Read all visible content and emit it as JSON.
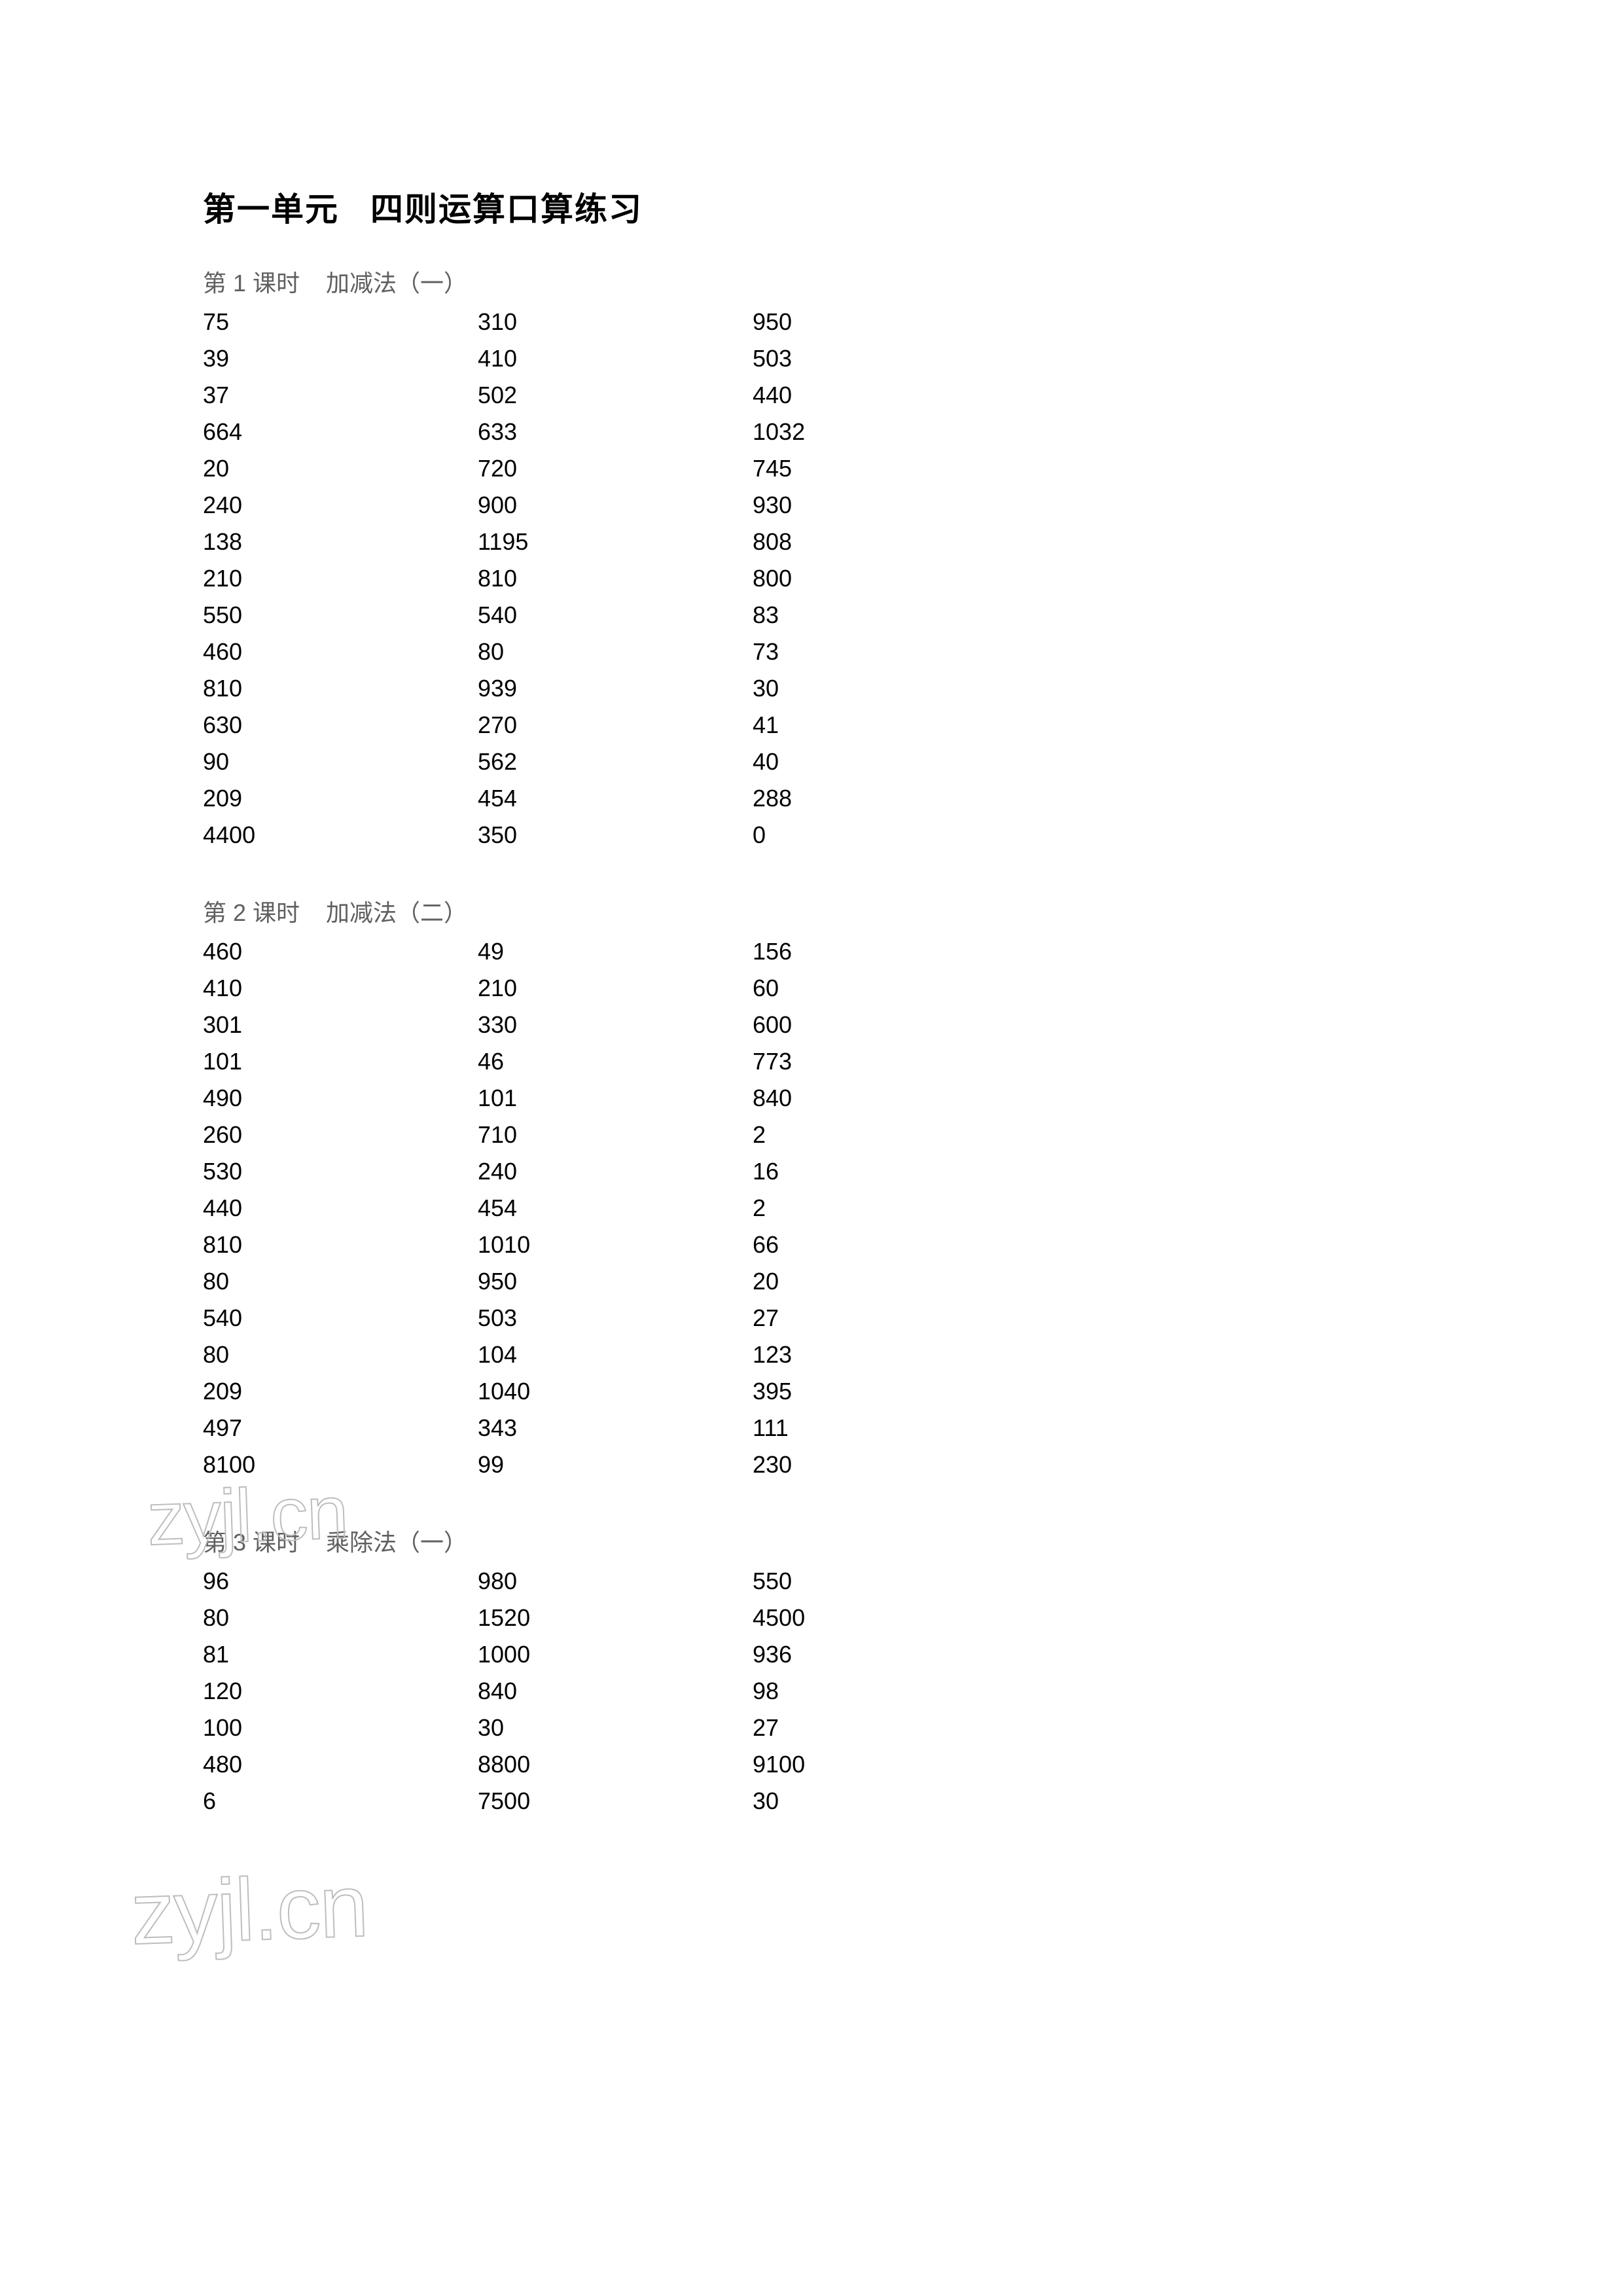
{
  "title_part1": "第一单元",
  "title_part2": "四则运算口算练习",
  "watermark_text": "zyjl.cn",
  "lessons": [
    {
      "label_prefix": "第 1 课时",
      "label_suffix": "加减法（一）",
      "columns": [
        [
          "75",
          "39",
          "37",
          "664",
          "20",
          "240",
          "138",
          "210",
          "550",
          "460",
          "810",
          "630",
          "90",
          "209",
          "4400"
        ],
        [
          "310",
          "410",
          "502",
          "633",
          "720",
          "900",
          "1195",
          "810",
          "540",
          "80",
          "939",
          "270",
          "562",
          "454",
          "350"
        ],
        [
          "950",
          "503",
          "440",
          "1032",
          "745",
          "930",
          "808",
          "800",
          "83",
          "73",
          "30",
          "41",
          "40",
          "288",
          "0"
        ]
      ]
    },
    {
      "label_prefix": "第 2 课时",
      "label_suffix": "加减法（二）",
      "columns": [
        [
          "460",
          "410",
          "301",
          "101",
          "490",
          "260",
          "530",
          "440",
          "810",
          "80",
          "540",
          "80",
          "209",
          "497",
          "8100"
        ],
        [
          "49",
          "210",
          "330",
          "46",
          "101",
          "710",
          "240",
          "454",
          "1010",
          "950",
          "503",
          "104",
          "1040",
          "343",
          "99"
        ],
        [
          "156",
          "60",
          "600",
          "773",
          "840",
          "2",
          "16",
          "2",
          "66",
          "20",
          "27",
          "123",
          "395",
          "111",
          "230"
        ]
      ]
    },
    {
      "label_prefix": "第 3 课时",
      "label_suffix": "乘除法（一）",
      "columns": [
        [
          "96",
          "80",
          "81",
          "120",
          "100",
          "480",
          "6"
        ],
        [
          "980",
          "1520",
          "1000",
          "840",
          "30",
          "8800",
          "7500"
        ],
        [
          "550",
          "4500",
          "936",
          "98",
          "27",
          "9100",
          "30"
        ]
      ]
    }
  ]
}
